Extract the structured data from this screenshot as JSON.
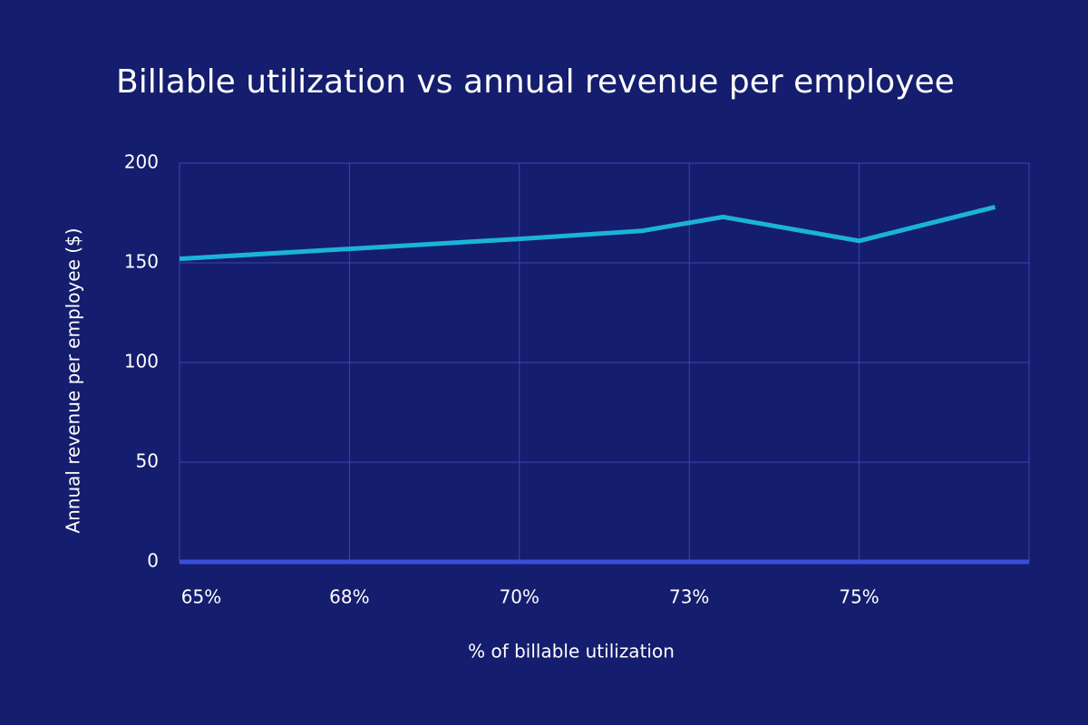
{
  "chart_data": {
    "type": "line",
    "title": "Billable utilization vs annual revenue per employee",
    "x_label": "% of billable utilization",
    "y_label": "Annual revenue per employee ($)",
    "x": [
      65,
      67.5,
      70,
      71.8,
      73,
      75,
      77
    ],
    "series": [
      {
        "color": "#1bb3d9",
        "values": [
          152,
          157,
          162,
          166,
          173,
          161,
          178
        ]
      }
    ],
    "xlim": [
      65,
      77.5
    ],
    "xticks": [
      {
        "value": 65,
        "label": "65%"
      },
      {
        "value": 67.5,
        "label": "68%"
      },
      {
        "value": 70,
        "label": "70%"
      },
      {
        "value": 72.5,
        "label": "73%"
      },
      {
        "value": 75,
        "label": "75%"
      }
    ],
    "ylim": [
      0,
      200
    ],
    "yticks": [
      0,
      50,
      100,
      150,
      200
    ],
    "grid": true
  }
}
